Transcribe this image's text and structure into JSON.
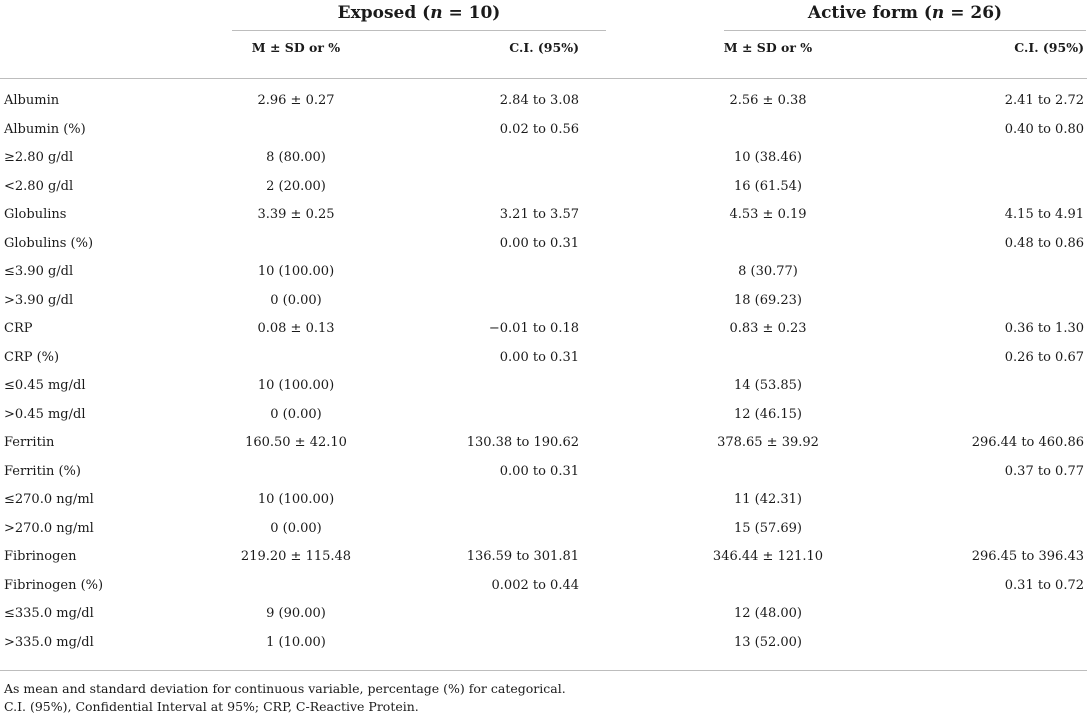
{
  "table": {
    "groups": [
      {
        "label": "Exposed (",
        "n_symbol": "n",
        "n_value": " = 10)"
      },
      {
        "label": "Active form (",
        "n_symbol": "n",
        "n_value": " = 26)"
      }
    ],
    "subheaders": [
      "M ± SD or %",
      "C.I. (95%)",
      "M ± SD or %",
      "C.I. (95%)"
    ],
    "rows": [
      [
        "Albumin",
        "2.96 ± 0.27",
        "2.84 to 3.08",
        "2.56 ± 0.38",
        "2.41 to 2.72"
      ],
      [
        "Albumin (%)",
        "",
        "0.02 to 0.56",
        "",
        "0.40 to 0.80"
      ],
      [
        "≥2.80 g/dl",
        "8 (80.00)",
        "",
        "10 (38.46)",
        ""
      ],
      [
        "<2.80 g/dl",
        "2 (20.00)",
        "",
        "16 (61.54)",
        ""
      ],
      [
        "Globulins",
        "3.39 ± 0.25",
        "3.21 to 3.57",
        "4.53 ± 0.19",
        "4.15 to 4.91"
      ],
      [
        "Globulins (%)",
        "",
        "0.00 to 0.31",
        "",
        "0.48 to 0.86"
      ],
      [
        "≤3.90 g/dl",
        "10 (100.00)",
        "",
        "8 (30.77)",
        ""
      ],
      [
        ">3.90 g/dl",
        "0 (0.00)",
        "",
        "18 (69.23)",
        ""
      ],
      [
        "CRP",
        "0.08 ± 0.13",
        "−0.01 to 0.18",
        "0.83 ± 0.23",
        "0.36 to 1.30"
      ],
      [
        "CRP (%)",
        "",
        "0.00 to 0.31",
        "",
        "0.26 to 0.67"
      ],
      [
        "≤0.45 mg/dl",
        "10 (100.00)",
        "",
        "14 (53.85)",
        ""
      ],
      [
        ">0.45 mg/dl",
        "0 (0.00)",
        "",
        "12 (46.15)",
        ""
      ],
      [
        "Ferritin",
        "160.50 ± 42.10",
        "130.38 to 190.62",
        "378.65 ± 39.92",
        "296.44 to 460.86"
      ],
      [
        "Ferritin (%)",
        "",
        "0.00 to 0.31",
        "",
        "0.37 to 0.77"
      ],
      [
        "≤270.0 ng/ml",
        "10 (100.00)",
        "",
        "11 (42.31)",
        ""
      ],
      [
        ">270.0 ng/ml",
        "0 (0.00)",
        "",
        "15 (57.69)",
        ""
      ],
      [
        "Fibrinogen",
        "219.20 ± 115.48",
        "136.59 to 301.81",
        "346.44 ± 121.10",
        "296.45 to 396.43"
      ],
      [
        "Fibrinogen (%)",
        "",
        "0.002 to 0.44",
        "",
        "0.31 to 0.72"
      ],
      [
        "≤335.0 mg/dl",
        "9 (90.00)",
        "",
        "12 (48.00)",
        ""
      ],
      [
        ">335.0 mg/dl",
        "1 (10.00)",
        "",
        "13 (52.00)",
        ""
      ]
    ],
    "footnotes": [
      "As mean and standard deviation for continuous variable, percentage (%) for categorical.",
      "C.I. (95%), Confidential Interval at 95%; CRP, C-Reactive Protein."
    ]
  }
}
